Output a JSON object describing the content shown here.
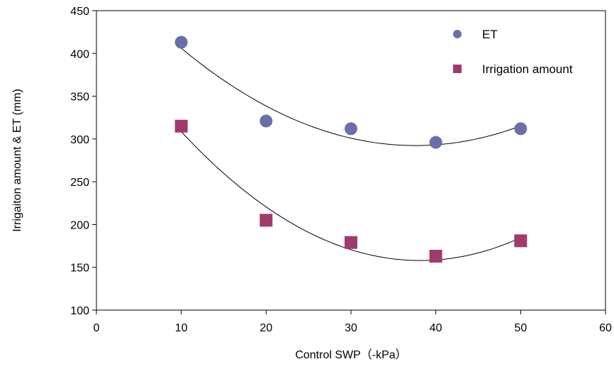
{
  "chart_data": {
    "type": "scatter",
    "xlabel": "Control SWP（-kPa）",
    "ylabel": "Irrigaiton amount & ET (mm)",
    "xlim": [
      0,
      60
    ],
    "ylim": [
      100,
      450
    ],
    "xticks": [
      0,
      10,
      20,
      30,
      40,
      50,
      60
    ],
    "yticks": [
      100,
      150,
      200,
      250,
      300,
      350,
      400,
      450
    ],
    "grid": false,
    "legend_position": "top-right",
    "series": [
      {
        "name": "ET",
        "marker": "circle",
        "color": "#6A6FA8",
        "x": [
          10,
          20,
          30,
          40,
          50
        ],
        "y": [
          413,
          321,
          312,
          296,
          312
        ],
        "trendline": "quadratic"
      },
      {
        "name": "Irrigation amount",
        "marker": "square",
        "color": "#A03A6E",
        "x": [
          10,
          20,
          30,
          40,
          50
        ],
        "y": [
          315,
          205,
          179,
          163,
          181
        ],
        "trendline": "quadratic"
      }
    ]
  }
}
